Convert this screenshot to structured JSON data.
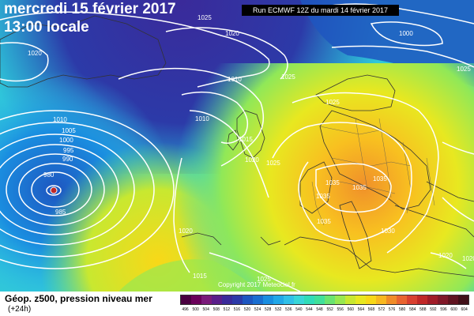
{
  "header": {
    "date": "mercredi 15 février 2017",
    "time": "13:00 locale",
    "run": "Run ECMWF 12Z du mardi 14 février 2017"
  },
  "copyright": "Copyright 2017 Meteociel.fr",
  "legend": {
    "title": "Géop. z500, pression niveau mer",
    "subtitle": "(+24h)",
    "scale_colors": [
      "#4a0040",
      "#6a005a",
      "#7a1a7a",
      "#5a1e8a",
      "#3a2a9a",
      "#2c3aa8",
      "#1e56c0",
      "#1a6ed0",
      "#1a8ee0",
      "#22a8e8",
      "#30c0e8",
      "#38d6d8",
      "#30dcb8",
      "#40e09a",
      "#6ae470",
      "#98e850",
      "#c8e830",
      "#e8e820",
      "#f8d818",
      "#f8b820",
      "#f08c28",
      "#e86430",
      "#d84030",
      "#c02828",
      "#a01c28",
      "#801828",
      "#601420",
      "#401018"
    ],
    "scale_labels": [
      "496",
      "500",
      "504",
      "508",
      "512",
      "516",
      "520",
      "524",
      "528",
      "532",
      "536",
      "540",
      "544",
      "548",
      "552",
      "556",
      "560",
      "564",
      "568",
      "572",
      "576",
      "580",
      "584",
      "588",
      "592",
      "596",
      "600",
      "604"
    ]
  },
  "map": {
    "isobars": [
      {
        "label": "1025"
      },
      {
        "label": "1020"
      },
      {
        "label": "1020"
      },
      {
        "label": "1000"
      },
      {
        "label": "1025"
      },
      {
        "label": "1010"
      },
      {
        "label": "1010"
      },
      {
        "label": "1005"
      },
      {
        "label": "1000"
      },
      {
        "label": "995"
      },
      {
        "label": "990"
      },
      {
        "label": "980"
      },
      {
        "label": "985"
      },
      {
        "label": "1010"
      },
      {
        "label": "1015"
      },
      {
        "label": "1020"
      },
      {
        "label": "1025"
      },
      {
        "label": "1025"
      },
      {
        "label": "1035"
      },
      {
        "label": "1035"
      },
      {
        "label": "1035"
      },
      {
        "label": "1035"
      },
      {
        "label": "1035"
      },
      {
        "label": "1030"
      },
      {
        "label": "1020"
      },
      {
        "label": "1015"
      },
      {
        "label": "1025"
      },
      {
        "label": "1020"
      },
      {
        "label": "1020"
      },
      {
        "label": "1025"
      }
    ]
  }
}
